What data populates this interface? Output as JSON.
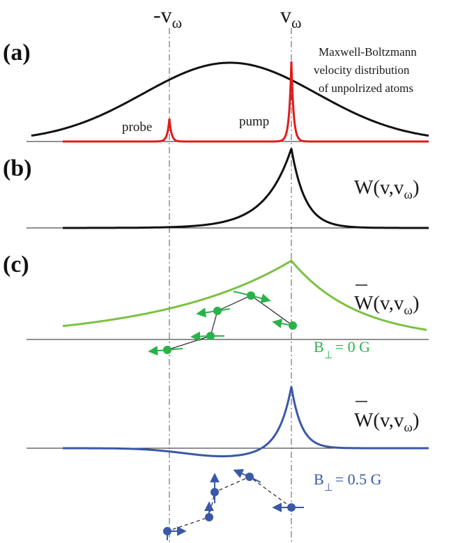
{
  "markers": {
    "neg_v": "-v",
    "neg_v_sub": "ω",
    "pos_v": "v",
    "pos_v_sub": "ω"
  },
  "panels": {
    "a": {
      "label": "(a)",
      "annotation_lines": [
        "Maxwell-Boltzmann",
        "velocity distribution",
        "of unpolrized atoms"
      ],
      "probe_label": "probe",
      "pump_label": "pump"
    },
    "b": {
      "label": "(b)",
      "formula_main": "W(v,v",
      "formula_sub": "ω",
      "formula_close": ")"
    },
    "c": {
      "label": "(c)",
      "formula_main": "W(v,v",
      "formula_sub": "ω",
      "formula_close": ")",
      "field_label_main": "B",
      "field_label_sub": "⊥",
      "field_label_value": "= 0 G"
    },
    "d": {
      "formula_main": "W(v,v",
      "formula_sub": "ω",
      "formula_close": ")",
      "field_label_main": "B",
      "field_label_sub": "⊥",
      "field_label_value": "= 0.5 G"
    }
  },
  "colors": {
    "maxwell": "#111111",
    "pump_probe": "#e21b1b",
    "panel_b": "#111111",
    "panel_c": "#7bc142",
    "panel_c_dots": "#2ab24a",
    "panel_d": "#3a58a7",
    "baseline": "#222222",
    "guide": "#555555"
  }
}
